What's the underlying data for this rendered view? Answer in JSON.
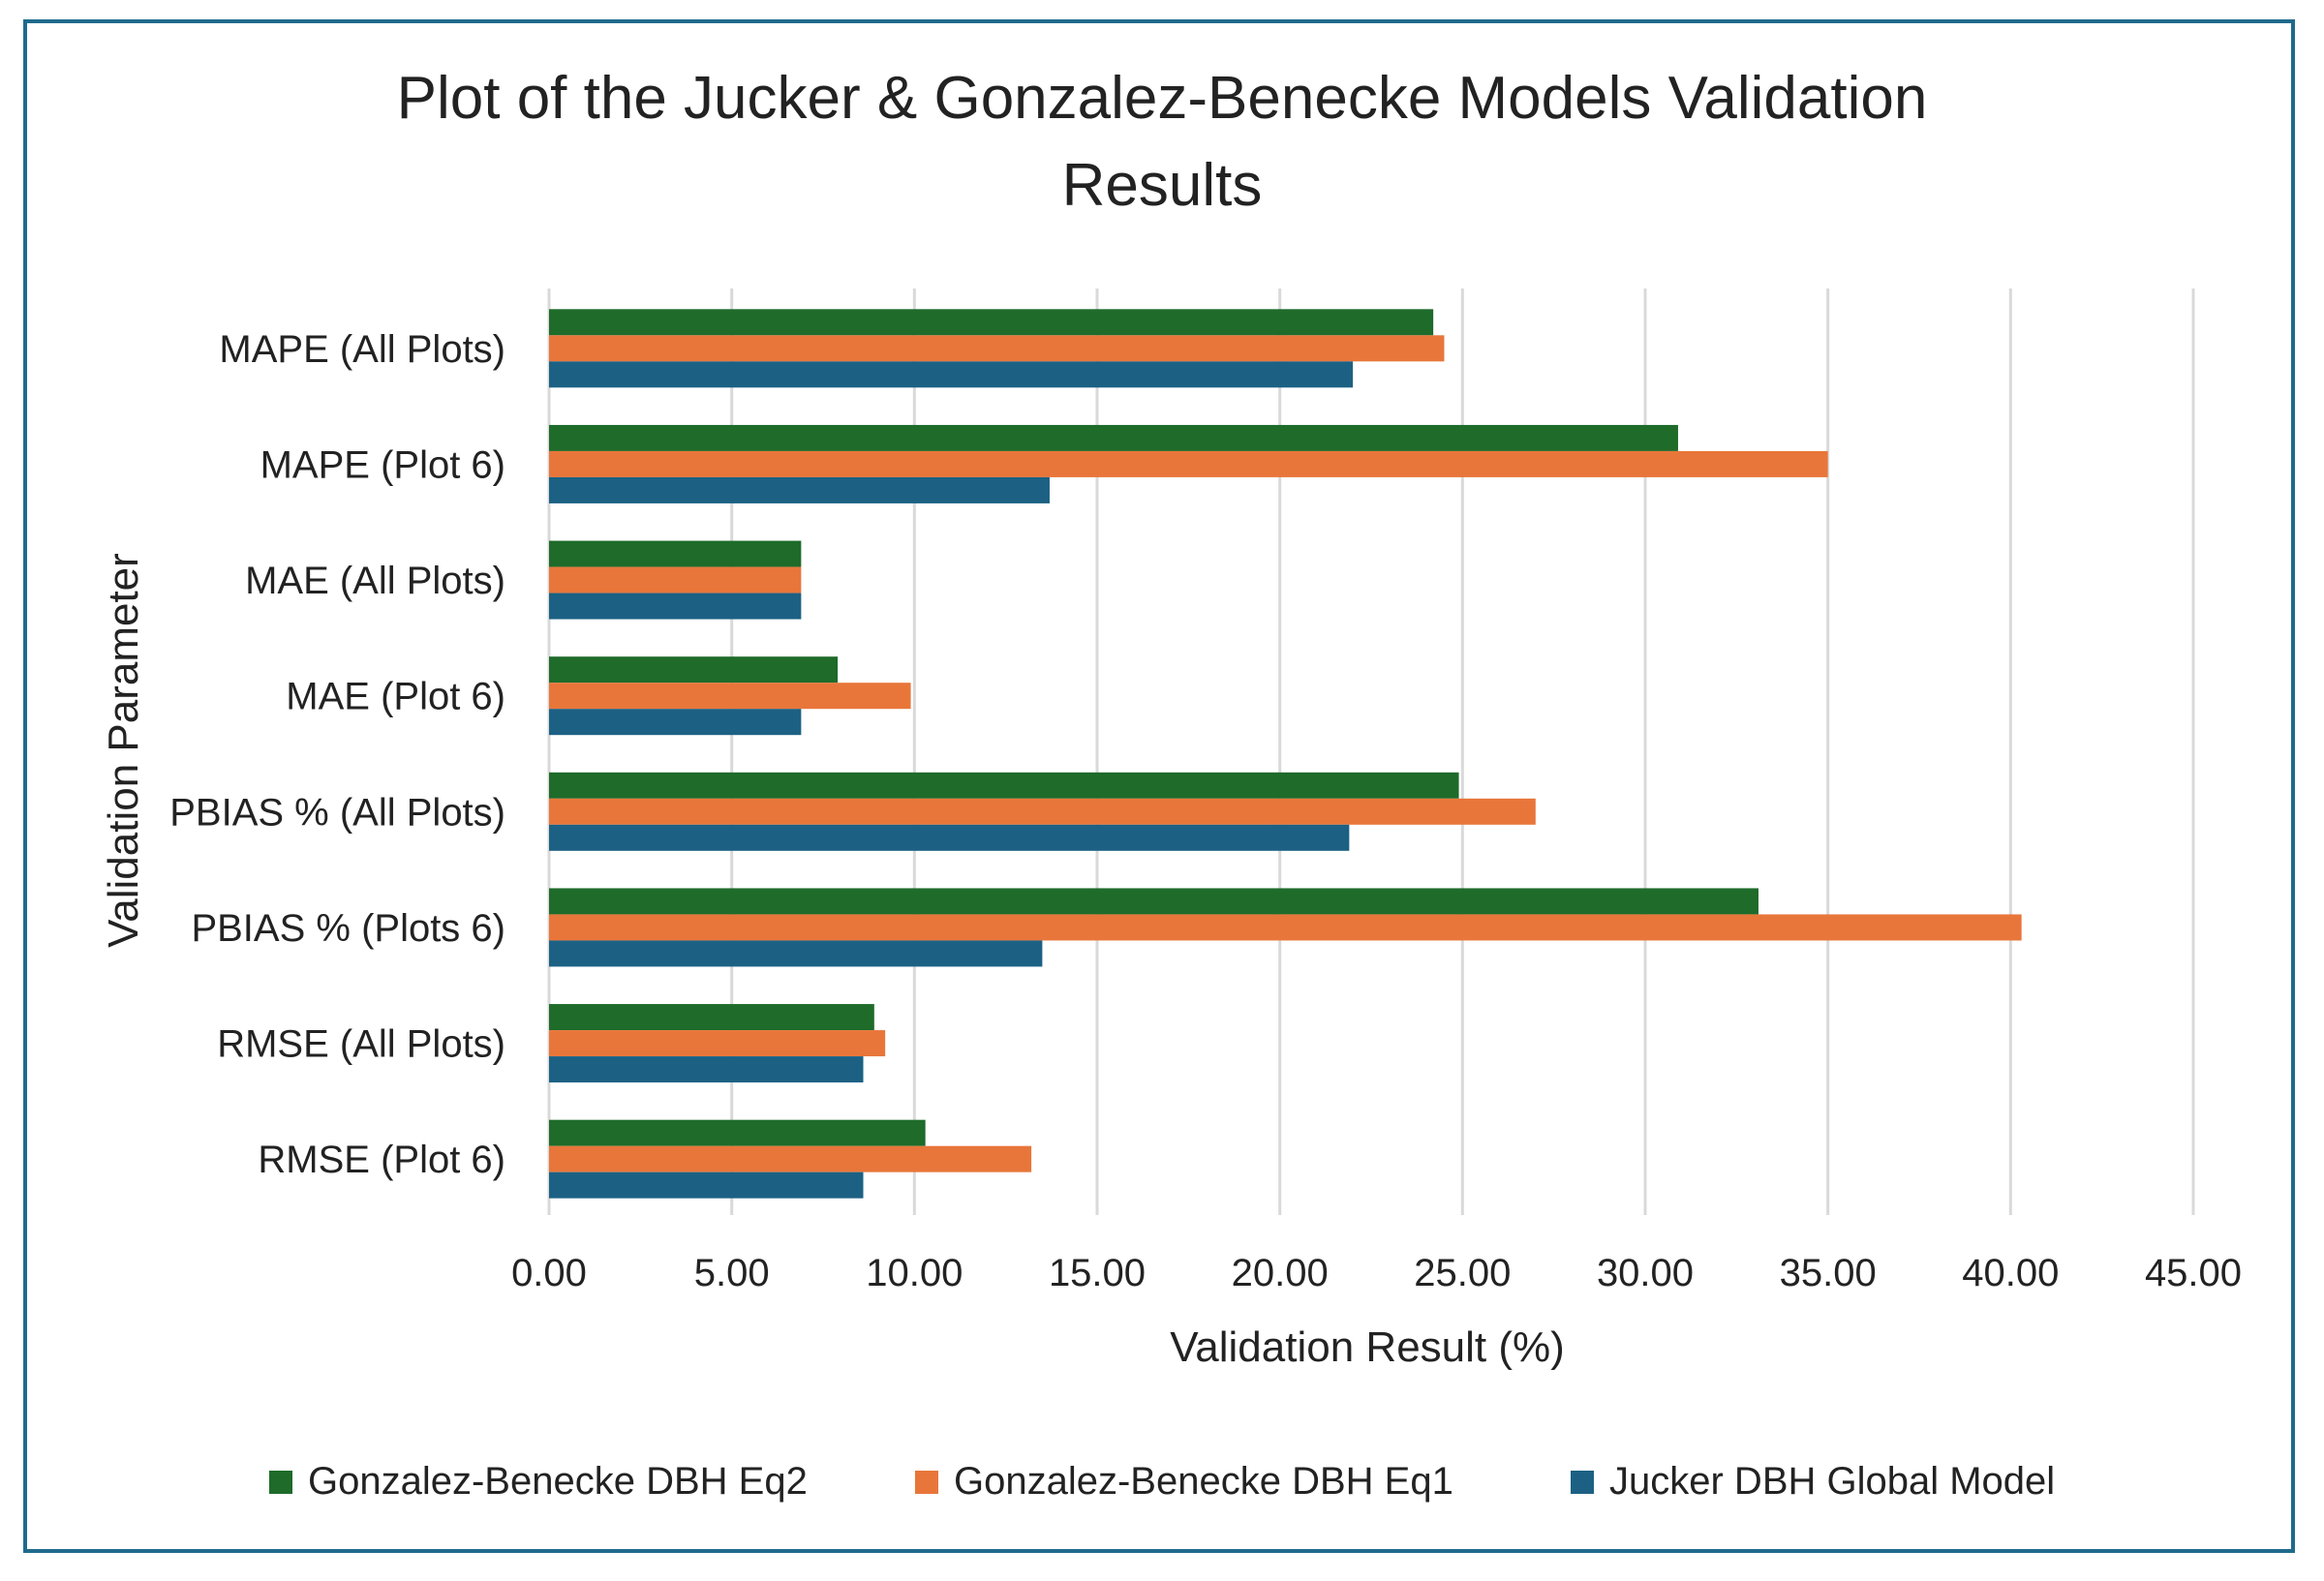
{
  "chart_data": {
    "type": "bar",
    "orientation": "horizontal",
    "title": [
      "Plot of the Jucker & Gonzalez-Benecke Models Validation",
      "Results"
    ],
    "xlabel": "Validation Result (%)",
    "ylabel": "Validation Parameter",
    "xlim": [
      0,
      45
    ],
    "xticks": [
      "0.00",
      "5.00",
      "10.00",
      "15.00",
      "20.00",
      "25.00",
      "30.00",
      "35.00",
      "40.00",
      "45.00"
    ],
    "grid": "vertical",
    "legend_position": "bottom",
    "categories": [
      "MAPE (All Plots)",
      "MAPE (Plot 6)",
      "MAE (All Plots)",
      "MAE (Plot 6)",
      "PBIAS % (All Plots)",
      "PBIAS % (Plots 6)",
      "RMSE (All Plots)",
      "RMSE (Plot 6)"
    ],
    "series": [
      {
        "name": "Gonzalez-Benecke DBH Eq2",
        "color": "#1e6b2a",
        "values": [
          24.2,
          30.9,
          6.9,
          7.9,
          24.9,
          33.1,
          8.9,
          10.3
        ]
      },
      {
        "name": "Gonzalez-Benecke DBH Eq1",
        "color": "#e8763a",
        "values": [
          24.5,
          35.0,
          6.9,
          9.9,
          27.0,
          40.3,
          9.2,
          13.2
        ]
      },
      {
        "name": "Jucker DBH Global Model",
        "color": "#1c6184",
        "values": [
          22.0,
          13.7,
          6.9,
          6.9,
          21.9,
          13.5,
          8.6,
          8.6
        ]
      }
    ]
  }
}
